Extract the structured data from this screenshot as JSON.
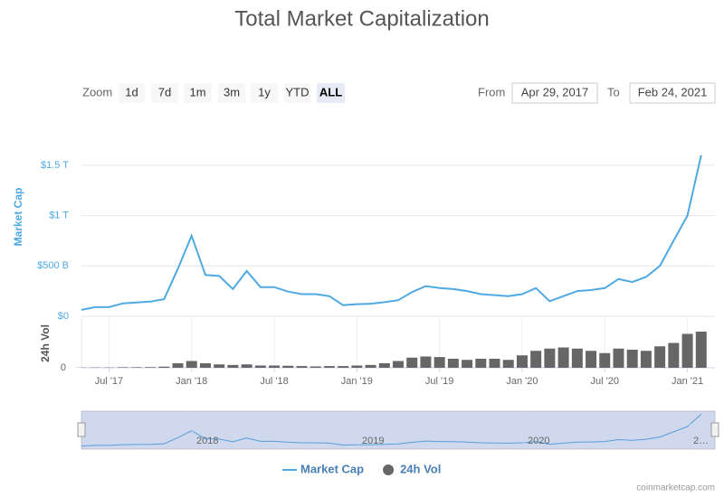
{
  "toolbar": {
    "zoom_label": "Zoom",
    "buttons": [
      "1d",
      "7d",
      "1m",
      "3m",
      "1y",
      "YTD",
      "ALL"
    ],
    "selected": "ALL",
    "from_label": "From",
    "from": "Apr 29, 2017",
    "to_label": "To",
    "to": "Feb 24, 2021"
  },
  "chart_data": {
    "type": "line",
    "title": "Total Market Capitalization",
    "x": [
      "2017-05",
      "2017-06",
      "2017-07",
      "2017-08",
      "2017-09",
      "2017-10",
      "2017-11",
      "2017-12",
      "2018-01",
      "2018-02",
      "2018-03",
      "2018-04",
      "2018-05",
      "2018-06",
      "2018-07",
      "2018-08",
      "2018-09",
      "2018-10",
      "2018-11",
      "2018-12",
      "2019-01",
      "2019-02",
      "2019-03",
      "2019-04",
      "2019-05",
      "2019-06",
      "2019-07",
      "2019-08",
      "2019-09",
      "2019-10",
      "2019-11",
      "2019-12",
      "2020-01",
      "2020-02",
      "2020-03",
      "2020-04",
      "2020-05",
      "2020-06",
      "2020-07",
      "2020-08",
      "2020-09",
      "2020-10",
      "2020-11",
      "2020-12",
      "2021-01",
      "2021-02"
    ],
    "xlim": [
      "2017-05",
      "2021-03"
    ],
    "xticks": [
      {
        "value": "2017-07",
        "label": "Jul '17"
      },
      {
        "value": "2018-01",
        "label": "Jan '18"
      },
      {
        "value": "2018-07",
        "label": "Jul '18"
      },
      {
        "value": "2019-01",
        "label": "Jan '19"
      },
      {
        "value": "2019-07",
        "label": "Jul '19"
      },
      {
        "value": "2020-01",
        "label": "Jan '20"
      },
      {
        "value": "2020-07",
        "label": "Jul '20"
      },
      {
        "value": "2021-01",
        "label": "Jan '21"
      }
    ],
    "series": [
      {
        "name": "Market Cap",
        "color": "#4fa9e3",
        "axis": "y",
        "values": [
          64,
          91,
          91,
          127,
          136,
          145,
          170,
          470,
          800,
          410,
          400,
          270,
          450,
          290,
          290,
          245,
          220,
          220,
          200,
          110,
          120,
          125,
          140,
          160,
          240,
          300,
          280,
          270,
          250,
          220,
          210,
          200,
          220,
          280,
          150,
          200,
          250,
          260,
          280,
          370,
          340,
          390,
          500,
          750,
          1000,
          1600
        ]
      },
      {
        "name": "24h Vol",
        "color": "#666666",
        "axis": "y2",
        "values": [
          2,
          3,
          3,
          5,
          5,
          6,
          10,
          40,
          60,
          40,
          30,
          25,
          30,
          20,
          20,
          18,
          15,
          12,
          15,
          15,
          20,
          25,
          40,
          60,
          90,
          100,
          95,
          80,
          70,
          80,
          80,
          70,
          110,
          150,
          170,
          180,
          170,
          150,
          130,
          170,
          160,
          150,
          190,
          220,
          300,
          320
        ]
      }
    ],
    "ylabel": "Market Cap",
    "y2label": "24h Vol",
    "ylim": [
      0,
      1750
    ],
    "yticks": [
      {
        "value": 0,
        "label": "$0"
      },
      {
        "value": 500,
        "label": "$500 B"
      },
      {
        "value": 1000,
        "label": "$1 T"
      },
      {
        "value": 1500,
        "label": "$1.5 T"
      }
    ],
    "y2lim": [
      0,
      400
    ],
    "y2ticks": [
      0
    ],
    "grid": true,
    "navigator": {
      "labels": [
        "2018",
        "2019",
        "2020",
        "2…"
      ]
    },
    "credits": "coinmarketcap.com"
  }
}
